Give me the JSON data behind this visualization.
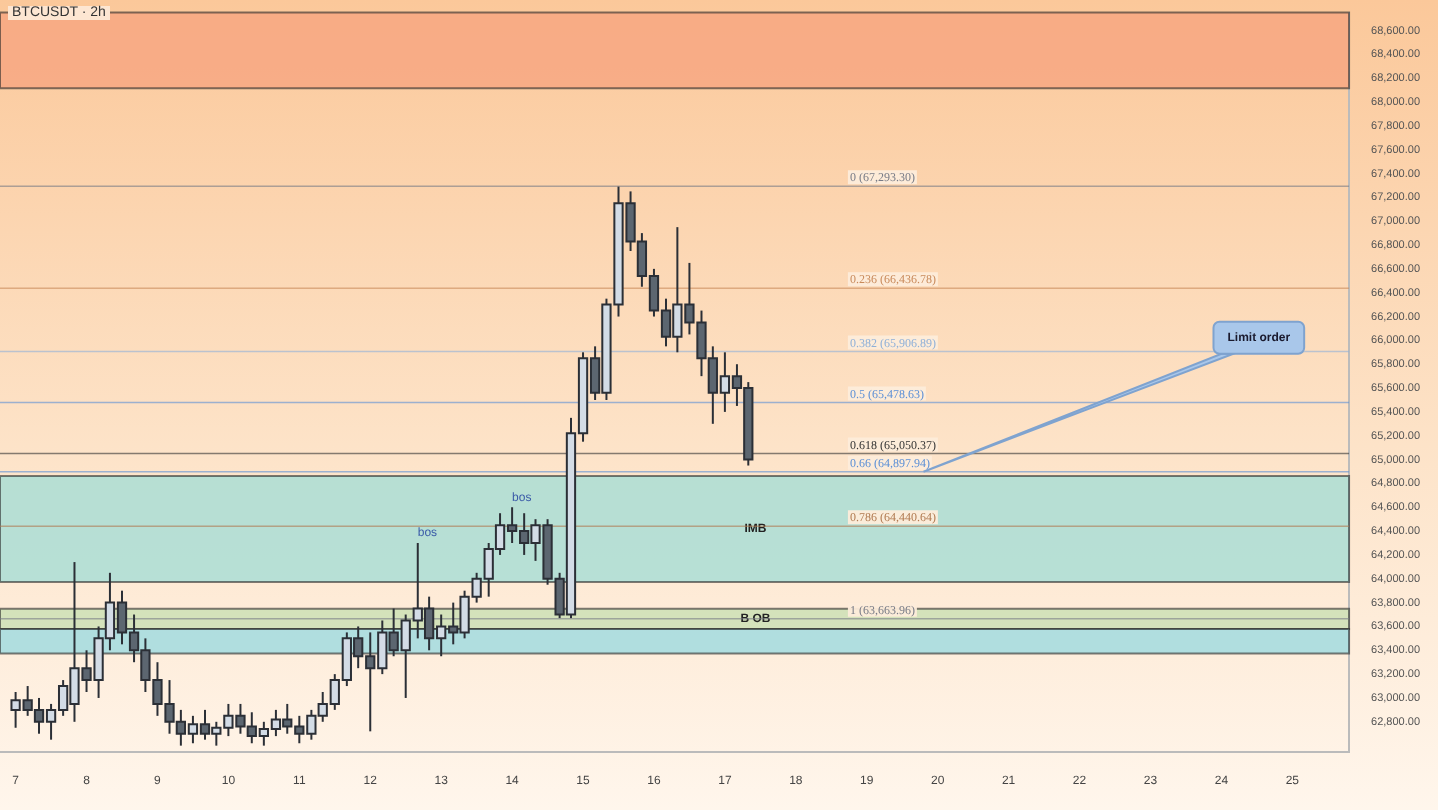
{
  "chart_data": {
    "type": "candlestick",
    "title": "BTCUSDT · 2h",
    "x": [
      7.0,
      7.17,
      7.33,
      7.5,
      7.67,
      7.83,
      8.0,
      8.17,
      8.33,
      8.5,
      8.67,
      8.83,
      9.0,
      9.17,
      9.33,
      9.5,
      9.67,
      9.83,
      10.0,
      10.17,
      10.33,
      10.5,
      10.67,
      10.83,
      11.0,
      11.17,
      11.33,
      11.5,
      11.67,
      11.83,
      12.0,
      12.17,
      12.33,
      12.5,
      12.67,
      12.83,
      13.0,
      13.17,
      13.33,
      13.5,
      13.67,
      13.83,
      14.0,
      14.17,
      14.33,
      14.5,
      14.67,
      14.83,
      15.0,
      15.17,
      15.33,
      15.5,
      15.67,
      15.83,
      16.0,
      16.17,
      16.33,
      16.5,
      16.67,
      16.83,
      17.0,
      17.17,
      17.33
    ],
    "ohlc": [
      [
        62900,
        63050,
        62750,
        62980
      ],
      [
        62980,
        63100,
        62850,
        62900
      ],
      [
        62900,
        63000,
        62700,
        62800
      ],
      [
        62800,
        62950,
        62650,
        62900
      ],
      [
        62900,
        63150,
        62850,
        63100
      ],
      [
        62950,
        64140,
        62800,
        63250
      ],
      [
        63250,
        63400,
        63050,
        63150
      ],
      [
        63150,
        63600,
        63000,
        63500
      ],
      [
        63500,
        64050,
        63400,
        63800
      ],
      [
        63800,
        63900,
        63450,
        63550
      ],
      [
        63550,
        63700,
        63300,
        63400
      ],
      [
        63400,
        63500,
        63050,
        63150
      ],
      [
        63150,
        63300,
        62850,
        62950
      ],
      [
        62950,
        63150,
        62700,
        62800
      ],
      [
        62800,
        62900,
        62600,
        62700
      ],
      [
        62700,
        62850,
        62620,
        62780
      ],
      [
        62780,
        62900,
        62650,
        62700
      ],
      [
        62700,
        62800,
        62600,
        62750
      ],
      [
        62750,
        62950,
        62680,
        62850
      ],
      [
        62850,
        62950,
        62700,
        62760
      ],
      [
        62760,
        62880,
        62620,
        62680
      ],
      [
        62680,
        62800,
        62600,
        62740
      ],
      [
        62740,
        62900,
        62680,
        62820
      ],
      [
        62820,
        62950,
        62700,
        62760
      ],
      [
        62760,
        62850,
        62620,
        62700
      ],
      [
        62700,
        62900,
        62650,
        62850
      ],
      [
        62850,
        63050,
        62800,
        62950
      ],
      [
        62950,
        63200,
        62900,
        63150
      ],
      [
        63150,
        63550,
        63100,
        63500
      ],
      [
        63500,
        63600,
        63250,
        63350
      ],
      [
        63350,
        63550,
        62720,
        63250
      ],
      [
        63250,
        63650,
        63200,
        63550
      ],
      [
        63550,
        63750,
        63350,
        63400
      ],
      [
        63400,
        63700,
        63000,
        63650
      ],
      [
        63650,
        64300,
        63500,
        63750
      ],
      [
        63750,
        63850,
        63400,
        63500
      ],
      [
        63500,
        63700,
        63350,
        63600
      ],
      [
        63600,
        63800,
        63450,
        63550
      ],
      [
        63550,
        63900,
        63500,
        63850
      ],
      [
        63850,
        64050,
        63800,
        64000
      ],
      [
        64000,
        64300,
        63850,
        64250
      ],
      [
        64250,
        64550,
        64200,
        64450
      ],
      [
        64450,
        64600,
        64300,
        64400
      ],
      [
        64400,
        64550,
        64200,
        64300
      ],
      [
        64300,
        64500,
        64150,
        64450
      ],
      [
        64450,
        64500,
        63950,
        64000
      ],
      [
        64000,
        64050,
        63670,
        63700
      ],
      [
        63700,
        65350,
        63670,
        65220
      ],
      [
        65220,
        65900,
        65150,
        65850
      ],
      [
        65850,
        65950,
        65500,
        65560
      ],
      [
        65560,
        66350,
        65500,
        66300
      ],
      [
        66300,
        67290,
        66200,
        67150
      ],
      [
        67150,
        67250,
        66750,
        66830
      ],
      [
        66830,
        66900,
        66450,
        66540
      ],
      [
        66540,
        66600,
        66200,
        66250
      ],
      [
        66250,
        66350,
        65950,
        66030
      ],
      [
        66030,
        66950,
        65900,
        66300
      ],
      [
        66300,
        66650,
        66050,
        66150
      ],
      [
        66150,
        66250,
        65700,
        65850
      ],
      [
        65850,
        65950,
        65300,
        65560
      ],
      [
        65560,
        65900,
        65400,
        65700
      ],
      [
        65700,
        65800,
        65450,
        65600
      ],
      [
        65600,
        65650,
        64950,
        65000
      ]
    ],
    "xlim": [
      6.78,
      25.8
    ],
    "xticks": [
      7,
      8,
      9,
      10,
      11,
      12,
      13,
      14,
      15,
      16,
      17,
      18,
      19,
      20,
      21,
      22,
      23,
      24,
      25
    ],
    "ylim": [
      62550,
      68750
    ],
    "yticks": [
      {
        "value": 62800,
        "label": "62,800.00"
      },
      {
        "value": 63000,
        "label": "63,000.00"
      },
      {
        "value": 63200,
        "label": "63,200.00"
      },
      {
        "value": 63400,
        "label": "63,400.00"
      },
      {
        "value": 63600,
        "label": "63,600.00"
      },
      {
        "value": 63800,
        "label": "63,800.00"
      },
      {
        "value": 64000,
        "label": "64,000.00"
      },
      {
        "value": 64200,
        "label": "64,200.00"
      },
      {
        "value": 64400,
        "label": "64,400.00"
      },
      {
        "value": 64600,
        "label": "64,600.00"
      },
      {
        "value": 64800,
        "label": "64,800.00"
      },
      {
        "value": 65000,
        "label": "65,000.00"
      },
      {
        "value": 65200,
        "label": "65,200.00"
      },
      {
        "value": 65400,
        "label": "65,400.00"
      },
      {
        "value": 65600,
        "label": "65,600.00"
      },
      {
        "value": 65800,
        "label": "65,800.00"
      },
      {
        "value": 66000,
        "label": "66,000.00"
      },
      {
        "value": 66200,
        "label": "66,200.00"
      },
      {
        "value": 66400,
        "label": "66,400.00"
      },
      {
        "value": 66600,
        "label": "66,600.00"
      },
      {
        "value": 66800,
        "label": "66,800.00"
      },
      {
        "value": 67000,
        "label": "67,000.00"
      },
      {
        "value": 67200,
        "label": "67,200.00"
      },
      {
        "value": 67400,
        "label": "67,400.00"
      },
      {
        "value": 67600,
        "label": "67,600.00"
      },
      {
        "value": 67800,
        "label": "67,800.00"
      },
      {
        "value": 68000,
        "label": "68,000.00"
      },
      {
        "value": 68200,
        "label": "68,200.00"
      },
      {
        "value": 68400,
        "label": "68,400.00"
      },
      {
        "value": 68600,
        "label": "68,600.00"
      }
    ],
    "bands": [
      {
        "axis": "y",
        "from": 68115,
        "to": 68750,
        "color": "#f7a27e"
      },
      {
        "axis": "y",
        "from": 63972,
        "to": 64862,
        "label": "IMB",
        "color": "#9fdcd6"
      },
      {
        "axis": "y",
        "from": 63578,
        "to": 63749,
        "label": "B OB",
        "color": "#c5dfb0"
      },
      {
        "axis": "y",
        "from": 63373,
        "to": 63578,
        "color": "#95d8e0"
      }
    ],
    "ref_lines": [
      {
        "axis": "y",
        "value": 67293.3,
        "label": "0 (67,293.30)",
        "color": "#787b86"
      },
      {
        "axis": "y",
        "value": 66436.78,
        "label": "0.236 (66,436.78)",
        "color": "#c98a5a"
      },
      {
        "axis": "y",
        "value": 65906.89,
        "label": "0.382 (65,906.89)",
        "color": "#8fb0d8"
      },
      {
        "axis": "y",
        "value": 65478.63,
        "label": "0.5 (65,478.63)",
        "color": "#5b8fd6"
      },
      {
        "axis": "y",
        "value": 65050.37,
        "label": "0.618 (65,050.37)",
        "color": "#333333"
      },
      {
        "axis": "y",
        "value": 64897.94,
        "label": "0.66 (64,897.94)",
        "color": "#5b8fd6"
      },
      {
        "axis": "y",
        "value": 64440.64,
        "label": "0.786 (64,440.64)",
        "color": "#b07a50"
      },
      {
        "axis": "y",
        "value": 63663.96,
        "label": "1 (63,663.96)",
        "color": "#787b86"
      }
    ],
    "annotations": [
      {
        "text": "bos",
        "x": 12.67,
        "y": 64300
      },
      {
        "text": "bos",
        "x": 14.0,
        "y": 64600
      },
      {
        "text": "Limit order",
        "x": 19.8,
        "y": 64897.94
      }
    ],
    "grid": false,
    "legend": false
  }
}
